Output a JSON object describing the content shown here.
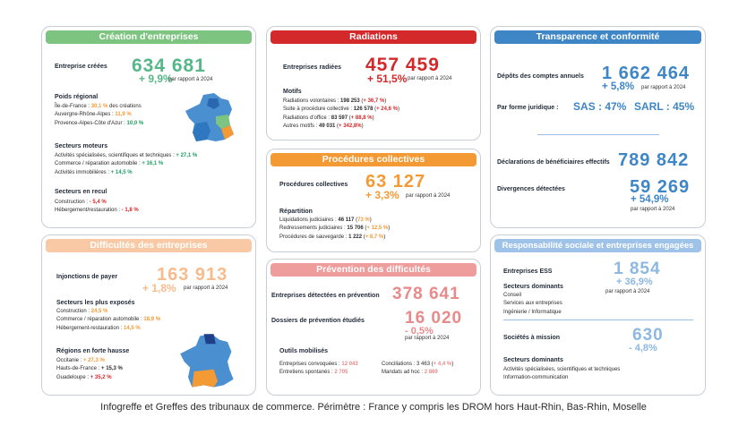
{
  "creation": {
    "title": "Création d'entreprises",
    "label": "Entreprise créées",
    "value": "634 681",
    "change": "+ 9,9%",
    "compare": "par rapport à 2024",
    "regional_title": "Poids régional",
    "regional": [
      {
        "name": "Île-de-France : ",
        "value": "30,1 %",
        "suffix": " des créations"
      },
      {
        "name": "Auvergne-Rhône-Alpes : ",
        "value": "11,9 %"
      },
      {
        "name": "Provence-Alpes-Côte d'Azur : ",
        "value": "10,0 %"
      }
    ],
    "driving_title": "Secteurs moteurs",
    "driving": [
      {
        "name": "Activités spécialisées, scientifiques et techniques : ",
        "value": "+ 27,1 %"
      },
      {
        "name": "Commerce / réparation automobile : ",
        "value": "+ 16,1 %"
      },
      {
        "name": "Activités immobilières : ",
        "value": "+ 14,5 %"
      }
    ],
    "decline_title": "Secteurs en recul",
    "decline": [
      {
        "name": "Construction : ",
        "value": "- 5,4 %"
      },
      {
        "name": "Hébergement/restauration : ",
        "value": "- 1,8 %"
      }
    ]
  },
  "radiations": {
    "title": "Radiations",
    "label": "Entreprises radiées",
    "value": "457 459",
    "change": "+ 51,5%",
    "compare": "par rapport à 2024",
    "motifs_title": "Motifs",
    "motifs": [
      {
        "name": "Radiations volontaires : ",
        "value": "198 253",
        "change": "+ 36,7 %"
      },
      {
        "name": "Suite à procédure collective : ",
        "value": "126 578",
        "change": "+ 24,6 %"
      },
      {
        "name": "Radiations d'office : ",
        "value": "83 597",
        "change": "+ 88,8 %"
      },
      {
        "name": "Autres motifs : ",
        "value": "49 031",
        "change": "+ 342,8%"
      }
    ]
  },
  "transparence": {
    "title": "Transparence et conformité",
    "depots_label": "Dépôts des comptes annuels",
    "depots_value": "1 662 464",
    "depots_change": "+ 5,8%",
    "compare": "par rapport à 2024",
    "forme_label": "Par forme juridique :",
    "sas": "SAS : 47%",
    "sarl": "SARL : 45%",
    "benef_label": "Déclarations de bénéficiaires effectifs",
    "benef_value": "789 842",
    "div_label": "Divergences détectées",
    "div_value": "59 269",
    "div_change": "+ 54,9%",
    "div_compare": "par rapport à 2024"
  },
  "procedures": {
    "title": "Procédures collectives",
    "label": "Procédures collectives",
    "value": "63 127",
    "change": "+ 3,3%",
    "compare": "par rapport à 2024",
    "rep_title": "Répartition",
    "items": [
      {
        "name": "Liquidations judiciaires : ",
        "value": "46 117",
        "change": "73 %"
      },
      {
        "name": "Redressements judiciaires : ",
        "value": "15 706",
        "change": "+ 12,5 %"
      },
      {
        "name": "Procédures de sauvegarde : ",
        "value": "1 222",
        "change": "+ 8,7 %"
      }
    ]
  },
  "difficultes": {
    "title": "Difficultés des entreprises",
    "label": "Injonctions de payer",
    "value": "163 913",
    "change": "+ 1,8%",
    "compare": "par rapport à 2024",
    "exposed_title": "Secteurs les plus exposés",
    "exposed": [
      {
        "name": "Construction : ",
        "value": "24,5 %"
      },
      {
        "name": "Commerce / réparation automobile : ",
        "value": "18,9 %"
      },
      {
        "name": "Hébergement-restauration : ",
        "value": "14,5 %"
      }
    ],
    "regions_title": "Régions en forte hausse",
    "regions": [
      {
        "name": "Occitanie : ",
        "value": "+ 27,3 %"
      },
      {
        "name": "Hauts-de-France : ",
        "value": "+ 15,3 %"
      },
      {
        "name": "Guadeloupe : ",
        "value": "+ 35,2 %"
      }
    ]
  },
  "prevention": {
    "title": "Prévention des difficultés",
    "detect_label": "Entreprises détectées en prévention",
    "detect_value": "378 641",
    "dossiers_label": "Dossiers de prévention étudiés",
    "dossiers_value": "16 020",
    "dossiers_change": "- 0,5%",
    "compare": "par rapport à 2024",
    "tools_title": "Outils mobilisés",
    "tools": [
      {
        "name": "Entreprises convoquées : ",
        "value": "12 043"
      },
      {
        "name": "Conciliations : ",
        "value": "3 463",
        "change": "+ 4,4 %"
      },
      {
        "name": "Entretiens spontanés : ",
        "value": "2 705"
      },
      {
        "name": "Mandats ad hoc : ",
        "value": "2 869"
      }
    ]
  },
  "rse": {
    "title": "Responsabilité sociale et entreprises engagées",
    "ess_label": "Entreprises ESS",
    "ess_value": "1 854",
    "ess_change": "+ 36,9%",
    "compare": "par rapport à 2024",
    "ess_sectors_title": "Secteurs dominants",
    "ess_sectors": [
      "Conseil",
      "Services aux entreprises",
      "Ingénierie / Informatique"
    ],
    "mission_label": "Sociétés à mission",
    "mission_value": "630",
    "mission_change": "- 4,8%",
    "mission_sectors_title": "Secteurs dominants",
    "mission_sectors": [
      "Activités spécialisées, scientifiques et techniques",
      "Information-communication"
    ]
  },
  "caption": "Infogreffe et Greffes des tribunaux de commerce. Périmètre : France y compris les DROM hors Haut-Rhin, Bas-Rhin, Moselle",
  "colors": {
    "green": "#7cc47f",
    "red": "#d3292a",
    "blue": "#3e86c6",
    "orange": "#f39a35",
    "peach": "#f8c9a4",
    "pink": "#ee9c9c",
    "lightblue": "#9fc3e8"
  }
}
